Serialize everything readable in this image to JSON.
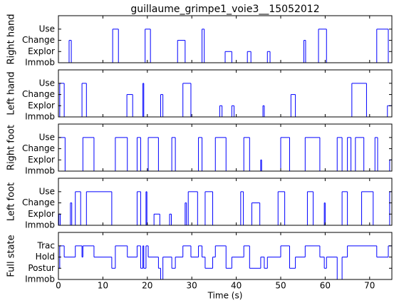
{
  "chart_data": [
    {
      "type": "step",
      "title": "guillaume_grimpe1_voie3__15052012",
      "ylabel": "Right hand",
      "color": "#0000ff",
      "x": [
        0,
        2.4,
        2.9,
        12.2,
        13.5,
        19.5,
        20.7,
        26.8,
        28.5,
        32.3,
        32.8,
        37.5,
        39,
        42.5,
        43.3,
        47,
        47.6,
        55.2,
        55.6,
        58.5,
        60.3,
        71.6,
        74.2
      ],
      "values": [
        0,
        2,
        0,
        3,
        0,
        3,
        0,
        2,
        0,
        3,
        0,
        1,
        0,
        1,
        0,
        1,
        0,
        2,
        0,
        3,
        0,
        3,
        0
      ],
      "xlim": [
        0,
        75
      ],
      "ylim": [
        0,
        4.2
      ],
      "xticks": [
        0,
        10,
        20,
        30,
        40,
        50,
        60,
        70
      ],
      "yticks": [
        {
          "value": 0,
          "label": "Immob"
        },
        {
          "value": 1,
          "label": "Explor"
        },
        {
          "value": 2,
          "label": "Change"
        },
        {
          "value": 3,
          "label": "Use"
        }
      ]
    },
    {
      "type": "step",
      "ylabel": "Left hand",
      "color": "#0000ff",
      "x": [
        0,
        0.3,
        1.3,
        5.3,
        6.3,
        15.4,
        16.7,
        19,
        19.2,
        23,
        23.5,
        28,
        29.8,
        36.3,
        36.8,
        39,
        39.5,
        46,
        46.3,
        52.3,
        53.3,
        66,
        69.3,
        74
      ],
      "values": [
        0,
        3,
        0,
        3,
        0,
        2,
        0,
        3,
        0,
        2,
        0,
        3,
        0,
        1,
        0,
        1,
        0,
        1,
        0,
        2,
        0,
        3,
        0,
        1
      ],
      "xlim": [
        0,
        75
      ],
      "ylim": [
        0,
        4.2
      ],
      "xticks": [
        0,
        10,
        20,
        30,
        40,
        50,
        60,
        70
      ],
      "yticks": [
        {
          "value": 0,
          "label": "Immob"
        },
        {
          "value": 1,
          "label": "Explor"
        },
        {
          "value": 2,
          "label": "Change"
        },
        {
          "value": 3,
          "label": "Use"
        }
      ]
    },
    {
      "type": "step",
      "ylabel": "Right foot",
      "color": "#0000ff",
      "x": [
        0,
        1.5,
        5.5,
        8,
        12.8,
        15.5,
        17.7,
        18.5,
        20.2,
        22.5,
        25.5,
        26.3,
        31.5,
        32.3,
        35.3,
        37.7,
        41.7,
        43,
        45.5,
        45.7,
        50,
        52,
        55.5,
        58.8,
        62.7,
        63.8,
        65,
        65.8,
        66.8,
        68.7,
        71.2,
        71.8,
        74.5
      ],
      "values": [
        3,
        0,
        3,
        0,
        3,
        0,
        3,
        0,
        3,
        0,
        3,
        0,
        3,
        0,
        3,
        0,
        3,
        0,
        1,
        0,
        3,
        0,
        3,
        0,
        3,
        0,
        3,
        0,
        3,
        0,
        3,
        0,
        1
      ],
      "xlim": [
        0,
        75
      ],
      "ylim": [
        0,
        4.2
      ],
      "xticks": [
        0,
        10,
        20,
        30,
        40,
        50,
        60,
        70
      ],
      "yticks": [
        {
          "value": 0,
          "label": "Immob"
        },
        {
          "value": 1,
          "label": "Explor"
        },
        {
          "value": 2,
          "label": "Change"
        },
        {
          "value": 3,
          "label": "Use"
        }
      ]
    },
    {
      "type": "step",
      "ylabel": "Left foot",
      "color": "#0000ff",
      "x": [
        0,
        0.1,
        0.4,
        2.7,
        3,
        3.8,
        5,
        6.3,
        12,
        17.7,
        18.5,
        19.7,
        19.9,
        21.5,
        22.8,
        25,
        25.4,
        28.5,
        28.8,
        29.2,
        31.3,
        33,
        34.7,
        41,
        41.6,
        43.5,
        45.3,
        49.4,
        50.9,
        56,
        57.3,
        59.8,
        60,
        63.8,
        65,
        68.2,
        70.8,
        74.5
      ],
      "values": [
        0,
        1,
        0,
        2,
        0,
        3,
        0,
        3,
        0,
        3,
        0,
        3,
        0,
        1,
        0,
        1,
        0,
        2,
        0,
        3,
        0,
        3,
        0,
        3,
        0,
        2,
        0,
        3,
        0,
        3,
        0,
        2,
        0,
        3,
        0,
        3,
        0,
        3
      ],
      "xlim": [
        0,
        75
      ],
      "ylim": [
        0,
        4.2
      ],
      "xticks": [
        0,
        10,
        20,
        30,
        40,
        50,
        60,
        70
      ],
      "yticks": [
        {
          "value": 0,
          "label": "Immob"
        },
        {
          "value": 1,
          "label": "Explor"
        },
        {
          "value": 2,
          "label": "Change"
        },
        {
          "value": 3,
          "label": "Use"
        }
      ]
    },
    {
      "type": "step",
      "ylabel": "Full state",
      "xlabel": "Time (s)",
      "color": "#0000ff",
      "x": [
        0,
        0.3,
        1.3,
        3.8,
        5.3,
        5.5,
        8,
        12,
        12.8,
        15.5,
        17.7,
        18.5,
        19,
        19.2,
        19.7,
        20.2,
        22.5,
        23,
        23.5,
        25.5,
        26.3,
        28,
        29.8,
        31.5,
        32.3,
        33,
        34.7,
        35.3,
        37.7,
        39,
        41.7,
        43,
        45.5,
        46.3,
        47,
        50,
        52,
        53.3,
        55.5,
        58.8,
        59.8,
        60.3,
        62.7,
        63.8,
        65,
        71.6,
        74.2
      ],
      "values": [
        1,
        3,
        2,
        3,
        2,
        3,
        2,
        1,
        3,
        2,
        3,
        1,
        3,
        1,
        3,
        2,
        1,
        0,
        2,
        1,
        2,
        3,
        2,
        3,
        2,
        1,
        2,
        3,
        1,
        2,
        3,
        1,
        2,
        1,
        2,
        3,
        1,
        2,
        3,
        2,
        1,
        2,
        0,
        2,
        3,
        2,
        3
      ],
      "xlim": [
        0,
        75
      ],
      "ylim": [
        0,
        4.2
      ],
      "xticks": [
        0,
        10,
        20,
        30,
        40,
        50,
        60,
        70
      ],
      "yticks": [
        {
          "value": 0,
          "label": "Immob"
        },
        {
          "value": 1,
          "label": "Postur"
        },
        {
          "value": 2,
          "label": "Hold"
        },
        {
          "value": 3,
          "label": "Trac"
        }
      ]
    }
  ]
}
